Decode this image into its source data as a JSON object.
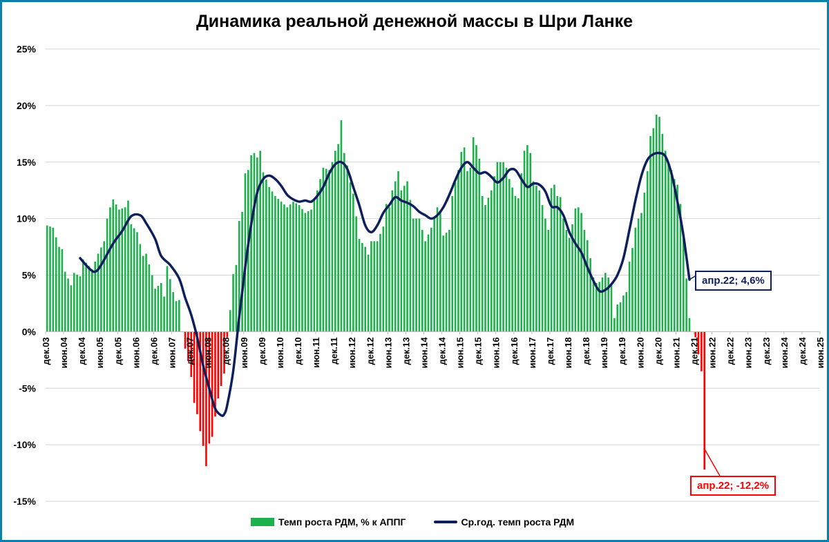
{
  "chart_data": {
    "type": "bar+line",
    "title": "Динамика реальной денежной массы в Шри Ланке",
    "ylim": [
      -15,
      25
    ],
    "y_ticks": [
      "25%",
      "20%",
      "15%",
      "10%",
      "5%",
      "0%",
      "-5%",
      "-10%",
      "-15%"
    ],
    "x_labels": [
      "дек.03",
      "июн.04",
      "дек.04",
      "июн.05",
      "дек.05",
      "июн.06",
      "дек.06",
      "июн.07",
      "дек.07",
      "июн.08",
      "дек.08",
      "июн.09",
      "дек.09",
      "июн.10",
      "дек.10",
      "июн.11",
      "дек.11",
      "июн.12",
      "дек.12",
      "июн.13",
      "дек.13",
      "июн.14",
      "дек.14",
      "июн.15",
      "дек.15",
      "июн.16",
      "дек.16",
      "июн.17",
      "дек.17",
      "июн.18",
      "дек.18",
      "июн.19",
      "дек.19",
      "июн.20",
      "дек.20",
      "июн.21",
      "дек.21",
      "июн.22",
      "дек.22",
      "июн.23",
      "дек.23",
      "июн.24",
      "дек.24",
      "июн.25"
    ],
    "bar_series": {
      "name": "Темп роста РДМ, % к АППГ",
      "positive_color": "#1db14b",
      "negative_color": "#ff0000",
      "anchors": [
        [
          0,
          9.4
        ],
        [
          2,
          9.2
        ],
        [
          4,
          7.5
        ],
        [
          5,
          7.3
        ],
        [
          6,
          5.3
        ],
        [
          8,
          4.1
        ],
        [
          9,
          5.2
        ],
        [
          11,
          4.9
        ],
        [
          12,
          6.4
        ],
        [
          14,
          5.8
        ],
        [
          15,
          5.5
        ],
        [
          17,
          6.9
        ],
        [
          19,
          8
        ],
        [
          20,
          10
        ],
        [
          21,
          11
        ],
        [
          22,
          11.7
        ],
        [
          24,
          10.8
        ],
        [
          26,
          11
        ],
        [
          27,
          11.6
        ],
        [
          28,
          9.5
        ],
        [
          30,
          8.8
        ],
        [
          32,
          6.7
        ],
        [
          33,
          6.9
        ],
        [
          35,
          5.0
        ],
        [
          36,
          3.8
        ],
        [
          38,
          4.3
        ],
        [
          39,
          3.1
        ],
        [
          40,
          5.8
        ],
        [
          42,
          3.5
        ],
        [
          43,
          2.7
        ],
        [
          44,
          2.8
        ],
        [
          45,
          0
        ],
        [
          46,
          -1.5
        ],
        [
          47,
          -2.6
        ],
        [
          48,
          -4
        ],
        [
          49,
          -6.3
        ],
        [
          50,
          -7.3
        ],
        [
          51,
          -8.8
        ],
        [
          52,
          -10.1
        ],
        [
          53,
          -11.9
        ],
        [
          54,
          -9.9
        ],
        [
          55,
          -9.3
        ],
        [
          56,
          -7.5
        ],
        [
          57,
          -5.9
        ],
        [
          59,
          -3.7
        ],
        [
          60,
          -0.5
        ],
        [
          61,
          1.9
        ],
        [
          62,
          5.1
        ],
        [
          63,
          5.9
        ],
        [
          64,
          9.8
        ],
        [
          65,
          10.6
        ],
        [
          66,
          14
        ],
        [
          67,
          14.3
        ],
        [
          68,
          15.6
        ],
        [
          69,
          15.8
        ],
        [
          70,
          15.4
        ],
        [
          71,
          16
        ],
        [
          72,
          14.1
        ],
        [
          74,
          12.8
        ],
        [
          76,
          12
        ],
        [
          78,
          11.5
        ],
        [
          80,
          11
        ],
        [
          82,
          11.5
        ],
        [
          84,
          11.2
        ],
        [
          86,
          10.5
        ],
        [
          88,
          10.8
        ],
        [
          90,
          12.5
        ],
        [
          92,
          14.5
        ],
        [
          94,
          14.3
        ],
        [
          95,
          15
        ],
        [
          96,
          16
        ],
        [
          97,
          16.6
        ],
        [
          98,
          18.7
        ],
        [
          99,
          15.8
        ],
        [
          100,
          14.7
        ],
        [
          101,
          13.2
        ],
        [
          102,
          12.2
        ],
        [
          104,
          8.2
        ],
        [
          106,
          7.5
        ],
        [
          107,
          6.8
        ],
        [
          108,
          8
        ],
        [
          110,
          8
        ],
        [
          112,
          9.3
        ],
        [
          113,
          11.3
        ],
        [
          114,
          11
        ],
        [
          115,
          12.5
        ],
        [
          116,
          13.3
        ],
        [
          117,
          14.2
        ],
        [
          118,
          12.5
        ],
        [
          120,
          13.3
        ],
        [
          122,
          10
        ],
        [
          124,
          10
        ],
        [
          125,
          9
        ],
        [
          126,
          8
        ],
        [
          128,
          9.2
        ],
        [
          130,
          11
        ],
        [
          131,
          10.5
        ],
        [
          132,
          8.5
        ],
        [
          134,
          9
        ],
        [
          135,
          12
        ],
        [
          136,
          13.2
        ],
        [
          137,
          14.3
        ],
        [
          138,
          15.9
        ],
        [
          139,
          16.3
        ],
        [
          140,
          14.2
        ],
        [
          141,
          14.5
        ],
        [
          142,
          17.2
        ],
        [
          143,
          16.5
        ],
        [
          144,
          15.3
        ],
        [
          145,
          12
        ],
        [
          146,
          11.2
        ],
        [
          148,
          12.5
        ],
        [
          150,
          15
        ],
        [
          152,
          15
        ],
        [
          153,
          14.5
        ],
        [
          154,
          13.5
        ],
        [
          156,
          12
        ],
        [
          157,
          11.8
        ],
        [
          158,
          14
        ],
        [
          159,
          16
        ],
        [
          160,
          16.5
        ],
        [
          161,
          15.8
        ],
        [
          162,
          13.3
        ],
        [
          164,
          12.5
        ],
        [
          165,
          11.2
        ],
        [
          166,
          10
        ],
        [
          167,
          9
        ],
        [
          168,
          12.7
        ],
        [
          169,
          13
        ],
        [
          170,
          12
        ],
        [
          171,
          11.9
        ],
        [
          172,
          10
        ],
        [
          173,
          9
        ],
        [
          174,
          8.3
        ],
        [
          175,
          9.5
        ],
        [
          176,
          10.9
        ],
        [
          177,
          11
        ],
        [
          178,
          10.5
        ],
        [
          179,
          9
        ],
        [
          180,
          8.1
        ],
        [
          181,
          6.5
        ],
        [
          182,
          4.8
        ],
        [
          183,
          4.3
        ],
        [
          184,
          4.4
        ],
        [
          185,
          4.8
        ],
        [
          186,
          5.2
        ],
        [
          187,
          4.8
        ],
        [
          188,
          4.3
        ],
        [
          189,
          1.2
        ],
        [
          190,
          2.4
        ],
        [
          191,
          2.6
        ],
        [
          192,
          3.2
        ],
        [
          193,
          3.5
        ],
        [
          194,
          6.2
        ],
        [
          195,
          7.4
        ],
        [
          196,
          9.2
        ],
        [
          197,
          10
        ],
        [
          198,
          10.5
        ],
        [
          199,
          12.3
        ],
        [
          200,
          14.2
        ],
        [
          201,
          17.3
        ],
        [
          202,
          18
        ],
        [
          203,
          19.2
        ],
        [
          204,
          19
        ],
        [
          205,
          17.5
        ],
        [
          206,
          16
        ],
        [
          207,
          14.9
        ],
        [
          208,
          14.3
        ],
        [
          209,
          13.5
        ],
        [
          210,
          13
        ],
        [
          211,
          11.3
        ],
        [
          212,
          8.5
        ],
        [
          213,
          4.7
        ],
        [
          214,
          1.2
        ],
        [
          215,
          0
        ],
        [
          216,
          -0.5
        ],
        [
          217,
          -2
        ],
        [
          218,
          -3.5
        ],
        [
          219,
          -12.2
        ]
      ]
    },
    "line_series": {
      "name": "Ср.год. темп роста РДМ",
      "color": "#0f1f5c",
      "anchors": [
        [
          11,
          6.5
        ],
        [
          14,
          5.6
        ],
        [
          16,
          5.3
        ],
        [
          18,
          5.9
        ],
        [
          22,
          7.8
        ],
        [
          25,
          8.9
        ],
        [
          28,
          10.2
        ],
        [
          31,
          10.3
        ],
        [
          33,
          9.6
        ],
        [
          36,
          8.2
        ],
        [
          38,
          6.7
        ],
        [
          41,
          5.9
        ],
        [
          44,
          4.7
        ],
        [
          46,
          3.0
        ],
        [
          48,
          1.5
        ],
        [
          50,
          -0.5
        ],
        [
          52,
          -3
        ],
        [
          54,
          -5
        ],
        [
          56,
          -6.8
        ],
        [
          58,
          -7.4
        ],
        [
          59,
          -7.3
        ],
        [
          60,
          -6.5
        ],
        [
          62,
          -3.5
        ],
        [
          64,
          1.3
        ],
        [
          66,
          5.7
        ],
        [
          68,
          9.5
        ],
        [
          70,
          12.3
        ],
        [
          72,
          13.5
        ],
        [
          74,
          13.8
        ],
        [
          76,
          13.5
        ],
        [
          78,
          12.9
        ],
        [
          80,
          12.1
        ],
        [
          82,
          11.7
        ],
        [
          84,
          11.5
        ],
        [
          86,
          11.6
        ],
        [
          88,
          11.5
        ],
        [
          90,
          12
        ],
        [
          92,
          12.8
        ],
        [
          94,
          14
        ],
        [
          96,
          14.8
        ],
        [
          98,
          15
        ],
        [
          100,
          14.4
        ],
        [
          102,
          12.8
        ],
        [
          104,
          11.2
        ],
        [
          106,
          9.4
        ],
        [
          108,
          8.8
        ],
        [
          110,
          9.4
        ],
        [
          112,
          10.5
        ],
        [
          114,
          11.2
        ],
        [
          116,
          11.9
        ],
        [
          118,
          11.6
        ],
        [
          120,
          11.4
        ],
        [
          122,
          11.1
        ],
        [
          124,
          10.6
        ],
        [
          126,
          10.3
        ],
        [
          128,
          10
        ],
        [
          130,
          10.3
        ],
        [
          132,
          11
        ],
        [
          134,
          12.1
        ],
        [
          136,
          13.4
        ],
        [
          138,
          14.5
        ],
        [
          140,
          15
        ],
        [
          142,
          14.5
        ],
        [
          144,
          14
        ],
        [
          146,
          14.1
        ],
        [
          148,
          13.7
        ],
        [
          150,
          13.2
        ],
        [
          152,
          13.6
        ],
        [
          154,
          14.3
        ],
        [
          156,
          14.3
        ],
        [
          158,
          13.5
        ],
        [
          160,
          12.8
        ],
        [
          162,
          13.1
        ],
        [
          164,
          13
        ],
        [
          166,
          12.4
        ],
        [
          168,
          11.1
        ],
        [
          170,
          11
        ],
        [
          172,
          10.3
        ],
        [
          174,
          8.8
        ],
        [
          176,
          7.8
        ],
        [
          178,
          7
        ],
        [
          180,
          5.7
        ],
        [
          182,
          4.5
        ],
        [
          184,
          3.6
        ],
        [
          186,
          3.7
        ],
        [
          188,
          4.2
        ],
        [
          190,
          5
        ],
        [
          192,
          6.5
        ],
        [
          194,
          9
        ],
        [
          196,
          11.6
        ],
        [
          198,
          13.8
        ],
        [
          200,
          15.2
        ],
        [
          202,
          15.7
        ],
        [
          204,
          15.8
        ],
        [
          206,
          15.5
        ],
        [
          208,
          14
        ],
        [
          210,
          11.5
        ],
        [
          212,
          8.5
        ],
        [
          214,
          4.6
        ]
      ]
    },
    "legend": {
      "placement": "bottom"
    },
    "callouts": [
      {
        "text": "апр.22; 4,6%",
        "series": "line"
      },
      {
        "text": "апр.22; -12,2%",
        "series": "bar"
      }
    ],
    "grid": "horizontal"
  }
}
